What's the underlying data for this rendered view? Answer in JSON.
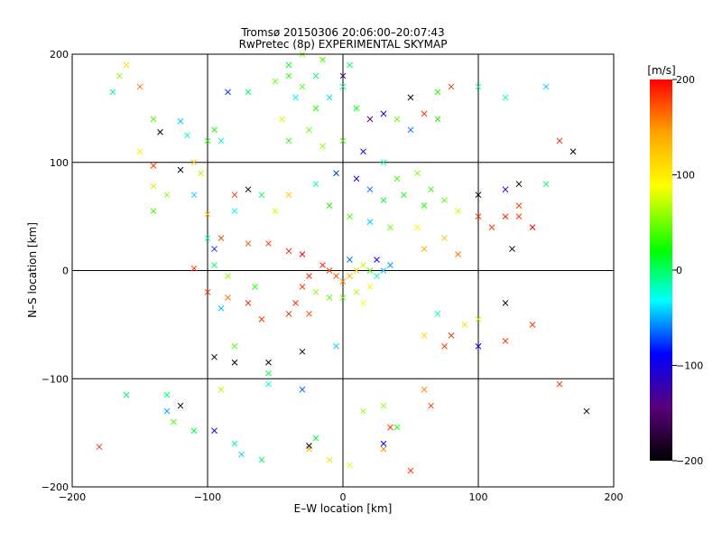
{
  "chart_data": {
    "type": "scatter",
    "title": "Tromsø 20150306 20:06:00–20:07:43",
    "subtitle": "RwPretec (8p) EXPERIMENTAL SKYMAP",
    "xlabel": "E–W location [km]",
    "ylabel": "N–S location [km]",
    "xlim": [
      -200,
      200
    ],
    "ylim": [
      -200,
      200
    ],
    "x_ticks": [
      -200,
      -100,
      0,
      100,
      200
    ],
    "y_ticks": [
      -200,
      -100,
      0,
      100,
      200
    ],
    "x_tick_labels": [
      "−200",
      "−100",
      "0",
      "100",
      "200"
    ],
    "y_tick_labels": [
      "−200",
      "−100",
      "0",
      "100",
      "200"
    ],
    "grid": true,
    "colorbar": {
      "label": "[m/s]",
      "range": [
        -200,
        200
      ],
      "ticks": [
        200,
        100,
        0,
        -100,
        -200
      ],
      "tick_labels": [
        "200",
        "100",
        "0",
        "−100",
        "−200"
      ],
      "colormap": [
        "#000000",
        "#5a007a",
        "#0000ff",
        "#00ffff",
        "#00ff00",
        "#ffff00",
        "#ffa500",
        "#ff0000"
      ]
    },
    "markers": {
      "small": "dot",
      "large": "x"
    },
    "points": [
      [
        -150,
        170,
        160,
        "x"
      ],
      [
        -170,
        165,
        -30,
        "x"
      ],
      [
        -160,
        190,
        100,
        "x"
      ],
      [
        -165,
        180,
        40,
        "x"
      ],
      [
        -140,
        140,
        20,
        "x"
      ],
      [
        -120,
        138,
        -60,
        "x"
      ],
      [
        -115,
        125,
        -30,
        "x"
      ],
      [
        -135,
        128,
        -200,
        "x"
      ],
      [
        -95,
        130,
        0,
        "x"
      ],
      [
        -85,
        165,
        -90,
        "x"
      ],
      [
        -70,
        165,
        -20,
        "x"
      ],
      [
        -90,
        120,
        -40,
        "x"
      ],
      [
        -100,
        120,
        10,
        "x"
      ],
      [
        -150,
        110,
        90,
        "x"
      ],
      [
        -140,
        97,
        180,
        "x"
      ],
      [
        -120,
        93,
        -200,
        "x"
      ],
      [
        -110,
        100,
        120,
        "x"
      ],
      [
        -105,
        90,
        50,
        "x"
      ],
      [
        -140,
        78,
        100,
        "x"
      ],
      [
        -130,
        70,
        40,
        "x"
      ],
      [
        -140,
        55,
        20,
        "x"
      ],
      [
        -110,
        70,
        -60,
        "x"
      ],
      [
        -100,
        52,
        120,
        "x"
      ],
      [
        -80,
        70,
        180,
        "x"
      ],
      [
        -70,
        75,
        -200,
        "x"
      ],
      [
        -80,
        55,
        -50,
        "x"
      ],
      [
        -60,
        70,
        -20,
        "x"
      ],
      [
        -50,
        55,
        60,
        "x"
      ],
      [
        -40,
        70,
        120,
        "x"
      ],
      [
        -100,
        30,
        -30,
        "x"
      ],
      [
        -95,
        20,
        -90,
        "x"
      ],
      [
        -90,
        30,
        180,
        "x"
      ],
      [
        -70,
        25,
        170,
        "x"
      ],
      [
        -55,
        25,
        180,
        "x"
      ],
      [
        -40,
        18,
        190,
        "x"
      ],
      [
        -30,
        15,
        200,
        "x"
      ],
      [
        -110,
        2,
        180,
        "x"
      ],
      [
        -95,
        5,
        -20,
        "x"
      ],
      [
        -85,
        -5,
        40,
        "x"
      ],
      [
        -65,
        -15,
        10,
        "x"
      ],
      [
        -100,
        -20,
        180,
        "x"
      ],
      [
        -90,
        -35,
        -60,
        "x"
      ],
      [
        -85,
        -25,
        160,
        "x"
      ],
      [
        -70,
        -30,
        190,
        "x"
      ],
      [
        -60,
        -45,
        180,
        "x"
      ],
      [
        -80,
        -70,
        20,
        "x"
      ],
      [
        -95,
        -80,
        -200,
        "x"
      ],
      [
        -80,
        -85,
        -200,
        "x"
      ],
      [
        -55,
        -85,
        -200,
        "x"
      ],
      [
        -30,
        -75,
        -200,
        "x"
      ],
      [
        -5,
        -70,
        -60,
        "x"
      ],
      [
        -90,
        -110,
        50,
        "x"
      ],
      [
        -55,
        -105,
        -40,
        "x"
      ],
      [
        -55,
        -95,
        -10,
        "x"
      ],
      [
        -30,
        -110,
        -80,
        "x"
      ],
      [
        -130,
        -115,
        -20,
        "x"
      ],
      [
        -160,
        -115,
        -20,
        "x"
      ],
      [
        -120,
        -125,
        -200,
        "x"
      ],
      [
        -130,
        -130,
        -70,
        "x"
      ],
      [
        -125,
        -140,
        20,
        "x"
      ],
      [
        -110,
        -148,
        -10,
        "x"
      ],
      [
        -95,
        -148,
        -110,
        "x"
      ],
      [
        -80,
        -160,
        -30,
        "x"
      ],
      [
        -75,
        -170,
        -60,
        "x"
      ],
      [
        -60,
        -175,
        -20,
        "x"
      ],
      [
        -180,
        -163,
        180,
        "x"
      ],
      [
        -25,
        -165,
        130,
        "x"
      ],
      [
        -20,
        -155,
        -10,
        "x"
      ],
      [
        -25,
        -162,
        -200,
        "x"
      ],
      [
        -10,
        -175,
        100,
        "x"
      ],
      [
        5,
        -180,
        70,
        "x"
      ],
      [
        30,
        -165,
        150,
        "x"
      ],
      [
        30,
        -160,
        -100,
        "x"
      ],
      [
        40,
        -145,
        10,
        "x"
      ],
      [
        35,
        -145,
        180,
        "x"
      ],
      [
        50,
        -185,
        180,
        "x"
      ],
      [
        30,
        -125,
        40,
        "x"
      ],
      [
        15,
        -130,
        40,
        "x"
      ],
      [
        60,
        -110,
        150,
        "x"
      ],
      [
        65,
        -125,
        180,
        "x"
      ],
      [
        60,
        -60,
        100,
        "x"
      ],
      [
        75,
        -70,
        180,
        "x"
      ],
      [
        80,
        -60,
        180,
        "x"
      ],
      [
        90,
        -50,
        100,
        "x"
      ],
      [
        70,
        -40,
        -40,
        "x"
      ],
      [
        100,
        -45,
        60,
        "x"
      ],
      [
        100,
        -70,
        -100,
        "x"
      ],
      [
        120,
        -65,
        180,
        "x"
      ],
      [
        140,
        -50,
        180,
        "x"
      ],
      [
        160,
        -105,
        180,
        "x"
      ],
      [
        180,
        -130,
        -200,
        "x"
      ],
      [
        120,
        -30,
        -200,
        "x"
      ],
      [
        110,
        40,
        180,
        "x"
      ],
      [
        100,
        50,
        180,
        "x"
      ],
      [
        120,
        50,
        190,
        "x"
      ],
      [
        130,
        60,
        180,
        "x"
      ],
      [
        130,
        50,
        180,
        "x"
      ],
      [
        140,
        40,
        200,
        "x"
      ],
      [
        100,
        70,
        -200,
        "x"
      ],
      [
        120,
        75,
        -100,
        "x"
      ],
      [
        130,
        80,
        -200,
        "x"
      ],
      [
        125,
        20,
        -200,
        "x"
      ],
      [
        150,
        80,
        -20,
        "x"
      ],
      [
        170,
        110,
        -200,
        "x"
      ],
      [
        160,
        120,
        190,
        "x"
      ],
      [
        150,
        170,
        -60,
        "x"
      ],
      [
        120,
        160,
        -40,
        "x"
      ],
      [
        100,
        170,
        -30,
        "x"
      ],
      [
        80,
        170,
        180,
        "x"
      ],
      [
        70,
        165,
        10,
        "x"
      ],
      [
        50,
        160,
        -200,
        "x"
      ],
      [
        60,
        145,
        180,
        "x"
      ],
      [
        70,
        140,
        10,
        "x"
      ],
      [
        50,
        130,
        -80,
        "x"
      ],
      [
        40,
        140,
        30,
        "x"
      ],
      [
        30,
        145,
        -100,
        "x"
      ],
      [
        20,
        140,
        -150,
        "x"
      ],
      [
        10,
        150,
        0,
        "x"
      ],
      [
        -10,
        160,
        -40,
        "x"
      ],
      [
        0,
        170,
        -30,
        "x"
      ],
      [
        -20,
        180,
        -20,
        "x"
      ],
      [
        -40,
        180,
        10,
        "x"
      ],
      [
        -50,
        175,
        30,
        "x"
      ],
      [
        -30,
        170,
        20,
        "x"
      ],
      [
        -40,
        190,
        -10,
        "x"
      ],
      [
        -30,
        200,
        40,
        "x"
      ],
      [
        -15,
        195,
        20,
        "x"
      ],
      [
        5,
        190,
        -20,
        "x"
      ],
      [
        0,
        180,
        -130,
        "x"
      ],
      [
        -20,
        150,
        10,
        "x"
      ],
      [
        -35,
        160,
        -40,
        "x"
      ],
      [
        -45,
        140,
        60,
        "x"
      ],
      [
        -25,
        130,
        30,
        "x"
      ],
      [
        -40,
        120,
        10,
        "x"
      ],
      [
        -15,
        115,
        40,
        "x"
      ],
      [
        0,
        120,
        20,
        "x"
      ],
      [
        15,
        110,
        -120,
        "x"
      ],
      [
        30,
        100,
        -30,
        "x"
      ],
      [
        40,
        85,
        20,
        "x"
      ],
      [
        55,
        90,
        40,
        "x"
      ],
      [
        65,
        75,
        10,
        "x"
      ],
      [
        75,
        65,
        30,
        "x"
      ],
      [
        85,
        55,
        60,
        "x"
      ],
      [
        60,
        60,
        10,
        "x"
      ],
      [
        45,
        70,
        0,
        "x"
      ],
      [
        30,
        65,
        -10,
        "x"
      ],
      [
        20,
        75,
        -80,
        "x"
      ],
      [
        10,
        85,
        -110,
        "x"
      ],
      [
        -5,
        90,
        -90,
        "x"
      ],
      [
        -20,
        80,
        -30,
        "x"
      ],
      [
        -10,
        60,
        10,
        "x"
      ],
      [
        5,
        50,
        20,
        "x"
      ],
      [
        20,
        45,
        -60,
        "x"
      ],
      [
        35,
        40,
        30,
        "x"
      ],
      [
        55,
        40,
        80,
        "x"
      ],
      [
        75,
        30,
        120,
        "x"
      ],
      [
        60,
        20,
        140,
        "x"
      ],
      [
        85,
        15,
        160,
        "x"
      ],
      [
        -15,
        5,
        190,
        "x"
      ],
      [
        -10,
        0,
        180,
        "x"
      ],
      [
        -5,
        -5,
        170,
        "x"
      ],
      [
        0,
        -10,
        150,
        "x"
      ],
      [
        5,
        -5,
        130,
        "x"
      ],
      [
        10,
        0,
        100,
        "x"
      ],
      [
        15,
        5,
        60,
        "x"
      ],
      [
        20,
        0,
        20,
        "x"
      ],
      [
        25,
        -5,
        -40,
        "x"
      ],
      [
        30,
        0,
        -60,
        "x"
      ],
      [
        -25,
        -5,
        190,
        "x"
      ],
      [
        -30,
        -15,
        180,
        "x"
      ],
      [
        -20,
        -20,
        40,
        "x"
      ],
      [
        -10,
        -25,
        20,
        "x"
      ],
      [
        0,
        -25,
        30,
        "x"
      ],
      [
        10,
        -20,
        50,
        "x"
      ],
      [
        15,
        -30,
        70,
        "x"
      ],
      [
        20,
        -15,
        80,
        "x"
      ],
      [
        -35,
        -30,
        190,
        "x"
      ],
      [
        -40,
        -40,
        180,
        "x"
      ],
      [
        -25,
        -40,
        170,
        "x"
      ],
      [
        5,
        10,
        -80,
        "x"
      ],
      [
        25,
        10,
        -100,
        "x"
      ],
      [
        35,
        5,
        -70,
        "x"
      ]
    ]
  }
}
